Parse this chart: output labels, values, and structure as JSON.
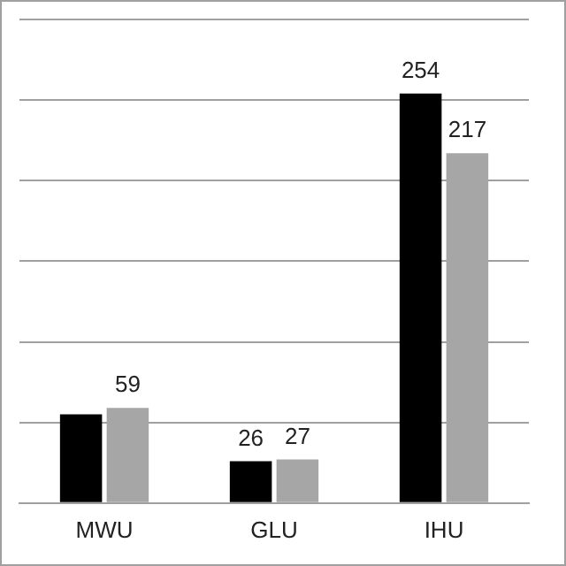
{
  "chart_data": {
    "type": "bar",
    "categories": [
      "MWU",
      "GLU",
      "IHU"
    ],
    "series": [
      {
        "color": "#000000",
        "values": [
          55,
          26,
          254
        ],
        "value_labels": [
          null,
          "26",
          "254"
        ]
      },
      {
        "color": "#a6a6a6",
        "values": [
          59,
          27,
          217
        ],
        "value_labels": [
          "59",
          "27",
          "217"
        ]
      }
    ],
    "ylim": [
      0,
      300
    ],
    "yticks": [
      {
        "value": 0,
        "label": null
      },
      {
        "value": 50,
        "label": null
      },
      {
        "value": 100,
        "label": null
      },
      {
        "value": 150,
        "label": null
      },
      {
        "value": 200,
        "label": null
      },
      {
        "value": 250,
        "label": null
      },
      {
        "value": 300,
        "label": null
      }
    ],
    "grid": "y",
    "legend": false,
    "tick_labels": "x"
  }
}
